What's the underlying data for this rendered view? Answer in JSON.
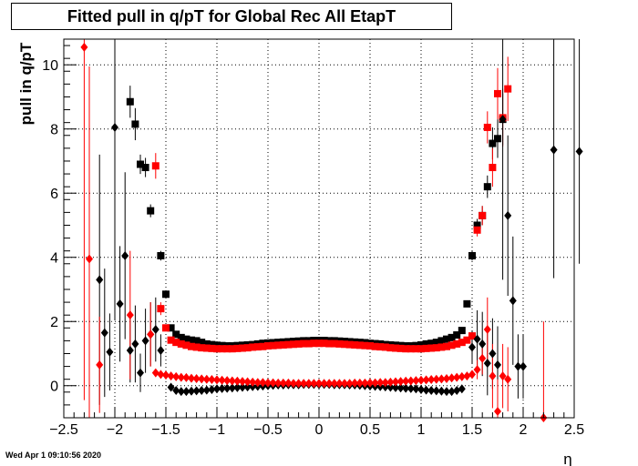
{
  "chart_data": {
    "type": "scatter",
    "title": "Fitted pull in q/pT for Global Rec All EtapT",
    "xlabel": "η",
    "ylabel": "pull in q/pT",
    "xlim": [
      -2.5,
      2.5
    ],
    "ylim": [
      -1.0,
      10.8
    ],
    "xticks": [
      -2.5,
      -2,
      -1.5,
      -1,
      -0.5,
      0,
      0.5,
      1,
      1.5,
      2,
      2.5
    ],
    "xtick_labels": [
      "−2.5",
      "−2",
      "−1.5",
      "−1",
      "−0.5",
      "0",
      "0.5",
      "1",
      "1.5",
      "2",
      "2.5"
    ],
    "yticks": [
      0,
      2,
      4,
      6,
      8,
      10
    ],
    "ytick_labels": [
      "0",
      "2",
      "4",
      "6",
      "8",
      "10"
    ],
    "grid": true,
    "series": [
      {
        "marker": "square",
        "color": "#000000",
        "x": [
          -1.85,
          -1.8,
          -1.75,
          -1.7,
          -1.65,
          -1.55,
          -1.5,
          -1.45,
          -1.4,
          -1.35,
          -1.3,
          -1.25,
          -1.2,
          -1.15,
          -1.1,
          -1.05,
          -1.0,
          -0.95,
          -0.9,
          -0.85,
          -0.8,
          -0.75,
          -0.7,
          -0.65,
          -0.6,
          -0.55,
          -0.5,
          -0.45,
          -0.4,
          -0.35,
          -0.3,
          -0.25,
          -0.2,
          -0.15,
          -0.1,
          -0.05,
          0.0,
          0.05,
          0.1,
          0.15,
          0.2,
          0.25,
          0.3,
          0.35,
          0.4,
          0.45,
          0.5,
          0.55,
          0.6,
          0.65,
          0.7,
          0.75,
          0.8,
          0.85,
          0.9,
          0.95,
          1.0,
          1.05,
          1.1,
          1.15,
          1.2,
          1.25,
          1.3,
          1.35,
          1.4,
          1.45,
          1.5,
          1.55,
          1.6,
          1.65,
          1.7,
          1.75,
          1.8
        ],
        "y": [
          8.85,
          8.15,
          6.9,
          6.8,
          5.45,
          4.05,
          2.85,
          1.8,
          1.6,
          1.5,
          1.45,
          1.42,
          1.4,
          1.35,
          1.3,
          1.28,
          1.26,
          1.25,
          1.24,
          1.24,
          1.25,
          1.26,
          1.27,
          1.28,
          1.3,
          1.32,
          1.33,
          1.34,
          1.35,
          1.36,
          1.37,
          1.38,
          1.39,
          1.4,
          1.4,
          1.41,
          1.41,
          1.41,
          1.4,
          1.4,
          1.39,
          1.38,
          1.37,
          1.36,
          1.35,
          1.34,
          1.32,
          1.31,
          1.3,
          1.28,
          1.27,
          1.26,
          1.25,
          1.24,
          1.24,
          1.25,
          1.27,
          1.3,
          1.32,
          1.35,
          1.4,
          1.45,
          1.5,
          1.58,
          1.72,
          2.55,
          4.05,
          5.0,
          5.3,
          6.2,
          7.55,
          7.7,
          8.3
        ],
        "yerr": [
          0.5,
          0.5,
          0.3,
          0.3,
          0.2,
          0.15,
          0.1,
          0.05,
          0.05,
          0.03,
          0.03,
          0.03,
          0.03,
          0.03,
          0.03,
          0.03,
          0.03,
          0.03,
          0.03,
          0.03,
          0.03,
          0.03,
          0.03,
          0.03,
          0.03,
          0.03,
          0.03,
          0.03,
          0.03,
          0.03,
          0.03,
          0.03,
          0.03,
          0.03,
          0.03,
          0.03,
          0.03,
          0.03,
          0.03,
          0.03,
          0.03,
          0.03,
          0.03,
          0.03,
          0.03,
          0.03,
          0.03,
          0.03,
          0.03,
          0.03,
          0.03,
          0.03,
          0.03,
          0.03,
          0.03,
          0.03,
          0.03,
          0.03,
          0.03,
          0.03,
          0.03,
          0.03,
          0.03,
          0.03,
          0.05,
          0.1,
          0.15,
          0.2,
          0.3,
          0.35,
          0.5,
          0.6,
          0.8
        ]
      },
      {
        "marker": "square",
        "color": "#ff0000",
        "x": [
          -1.6,
          -1.55,
          -1.5,
          -1.45,
          -1.4,
          -1.35,
          -1.3,
          -1.25,
          -1.2,
          -1.15,
          -1.1,
          -1.05,
          -1.0,
          -0.95,
          -0.9,
          -0.85,
          -0.8,
          -0.75,
          -0.7,
          -0.65,
          -0.6,
          -0.55,
          -0.5,
          -0.45,
          -0.4,
          -0.35,
          -0.3,
          -0.25,
          -0.2,
          -0.15,
          -0.1,
          -0.05,
          0.0,
          0.05,
          0.1,
          0.15,
          0.2,
          0.25,
          0.3,
          0.35,
          0.4,
          0.45,
          0.5,
          0.55,
          0.6,
          0.65,
          0.7,
          0.75,
          0.8,
          0.85,
          0.9,
          0.95,
          1.0,
          1.05,
          1.1,
          1.15,
          1.2,
          1.25,
          1.3,
          1.35,
          1.4,
          1.45,
          1.5,
          1.55,
          1.6,
          1.65,
          1.7,
          1.75,
          1.8,
          1.85
        ],
        "y": [
          6.85,
          2.4,
          1.8,
          1.42,
          1.35,
          1.3,
          1.26,
          1.22,
          1.2,
          1.18,
          1.17,
          1.16,
          1.15,
          1.15,
          1.15,
          1.15,
          1.16,
          1.17,
          1.18,
          1.2,
          1.21,
          1.22,
          1.24,
          1.25,
          1.26,
          1.27,
          1.28,
          1.29,
          1.3,
          1.31,
          1.31,
          1.32,
          1.32,
          1.32,
          1.31,
          1.31,
          1.3,
          1.29,
          1.28,
          1.27,
          1.26,
          1.25,
          1.24,
          1.22,
          1.21,
          1.2,
          1.18,
          1.17,
          1.16,
          1.15,
          1.15,
          1.15,
          1.15,
          1.16,
          1.17,
          1.18,
          1.2,
          1.22,
          1.26,
          1.3,
          1.35,
          1.42,
          1.55,
          4.85,
          5.3,
          8.05,
          6.8,
          9.1,
          8.35,
          9.25
        ],
        "yerr": [
          0.4,
          0.2,
          0.1,
          0.05,
          0.03,
          0.03,
          0.03,
          0.03,
          0.03,
          0.03,
          0.03,
          0.03,
          0.03,
          0.03,
          0.03,
          0.03,
          0.03,
          0.03,
          0.03,
          0.03,
          0.03,
          0.03,
          0.03,
          0.03,
          0.03,
          0.03,
          0.03,
          0.03,
          0.03,
          0.03,
          0.03,
          0.03,
          0.03,
          0.03,
          0.03,
          0.03,
          0.03,
          0.03,
          0.03,
          0.03,
          0.03,
          0.03,
          0.03,
          0.03,
          0.03,
          0.03,
          0.03,
          0.03,
          0.03,
          0.03,
          0.03,
          0.03,
          0.03,
          0.03,
          0.03,
          0.03,
          0.03,
          0.03,
          0.03,
          0.03,
          0.03,
          0.05,
          0.1,
          0.2,
          0.3,
          0.5,
          0.6,
          0.8,
          0.9,
          1.0
        ]
      },
      {
        "marker": "diamond",
        "color": "#000000",
        "x": [
          -2.15,
          -2.1,
          -2.05,
          -2.0,
          -1.95,
          -1.9,
          -1.85,
          -1.8,
          -1.75,
          -1.7,
          -1.65,
          -1.6,
          -1.55,
          -1.45,
          -1.4,
          -1.35,
          -1.3,
          -1.25,
          -1.2,
          -1.15,
          -1.1,
          -1.05,
          -1.0,
          -0.95,
          -0.9,
          -0.85,
          -0.8,
          -0.75,
          -0.7,
          -0.65,
          -0.6,
          -0.55,
          -0.5,
          -0.45,
          -0.4,
          -0.35,
          -0.3,
          -0.25,
          -0.2,
          -0.15,
          -0.1,
          -0.05,
          0.0,
          0.05,
          0.1,
          0.15,
          0.2,
          0.25,
          0.3,
          0.35,
          0.4,
          0.45,
          0.5,
          0.55,
          0.6,
          0.65,
          0.7,
          0.75,
          0.8,
          0.85,
          0.9,
          0.95,
          1.0,
          1.05,
          1.1,
          1.15,
          1.2,
          1.25,
          1.3,
          1.35,
          1.4,
          1.5,
          1.55,
          1.6,
          1.65,
          1.7,
          1.75,
          1.8,
          1.85,
          1.9,
          1.95,
          2.0,
          2.3,
          2.55
        ],
        "y": [
          3.3,
          1.65,
          1.05,
          8.05,
          2.55,
          4.05,
          1.1,
          1.3,
          0.4,
          1.4,
          1.6,
          1.75,
          1.1,
          -0.05,
          -0.15,
          -0.18,
          -0.18,
          -0.17,
          -0.16,
          -0.15,
          -0.14,
          -0.12,
          -0.1,
          -0.09,
          -0.08,
          -0.07,
          -0.06,
          -0.05,
          -0.04,
          -0.03,
          -0.02,
          -0.01,
          0.0,
          0.01,
          0.02,
          0.02,
          0.03,
          0.03,
          0.03,
          0.04,
          0.04,
          0.04,
          0.04,
          0.04,
          0.04,
          0.03,
          0.03,
          0.03,
          0.02,
          0.02,
          0.01,
          0.0,
          -0.01,
          -0.02,
          -0.03,
          -0.04,
          -0.05,
          -0.06,
          -0.07,
          -0.08,
          -0.09,
          -0.1,
          -0.12,
          -0.14,
          -0.15,
          -0.16,
          -0.17,
          -0.18,
          -0.18,
          -0.15,
          -0.1,
          1.2,
          1.45,
          1.3,
          0.7,
          1.0,
          0.65,
          8.3,
          5.3,
          2.65,
          0.6,
          0.6,
          7.35,
          7.3
        ],
        "yerr": [
          3.9,
          2.0,
          1.2,
          6.0,
          1.8,
          2.6,
          1.0,
          1.2,
          0.6,
          1.0,
          1.0,
          1.0,
          0.5,
          0.05,
          0.03,
          0.03,
          0.03,
          0.03,
          0.03,
          0.03,
          0.03,
          0.03,
          0.03,
          0.03,
          0.03,
          0.03,
          0.03,
          0.03,
          0.03,
          0.03,
          0.03,
          0.03,
          0.03,
          0.03,
          0.03,
          0.03,
          0.03,
          0.03,
          0.03,
          0.03,
          0.03,
          0.03,
          0.03,
          0.03,
          0.03,
          0.03,
          0.03,
          0.03,
          0.03,
          0.03,
          0.03,
          0.03,
          0.03,
          0.03,
          0.03,
          0.03,
          0.03,
          0.03,
          0.03,
          0.03,
          0.03,
          0.03,
          0.03,
          0.03,
          0.03,
          0.03,
          0.03,
          0.03,
          0.03,
          0.03,
          0.05,
          0.5,
          0.9,
          1.0,
          1.0,
          1.1,
          1.2,
          5.0,
          2.5,
          2.0,
          1.0,
          1.0,
          4.0,
          3.5
        ]
      },
      {
        "marker": "diamond",
        "color": "#ff0000",
        "x": [
          -2.3,
          -2.25,
          -2.15,
          -1.85,
          -1.65,
          -1.6,
          -1.55,
          -1.5,
          -1.45,
          -1.4,
          -1.35,
          -1.3,
          -1.25,
          -1.2,
          -1.15,
          -1.1,
          -1.05,
          -1.0,
          -0.95,
          -0.9,
          -0.85,
          -0.8,
          -0.75,
          -0.7,
          -0.65,
          -0.6,
          -0.55,
          -0.5,
          -0.45,
          -0.4,
          -0.35,
          -0.3,
          -0.25,
          -0.2,
          -0.15,
          -0.1,
          -0.05,
          0.0,
          0.05,
          0.1,
          0.15,
          0.2,
          0.25,
          0.3,
          0.35,
          0.4,
          0.45,
          0.5,
          0.55,
          0.6,
          0.65,
          0.7,
          0.75,
          0.8,
          0.85,
          0.9,
          0.95,
          1.0,
          1.05,
          1.1,
          1.15,
          1.2,
          1.25,
          1.3,
          1.35,
          1.4,
          1.45,
          1.5,
          1.55,
          1.6,
          1.65,
          1.7,
          1.75,
          1.8,
          1.85,
          2.2
        ],
        "y": [
          10.55,
          3.95,
          0.65,
          2.2,
          1.6,
          0.4,
          0.35,
          0.33,
          0.3,
          0.28,
          0.26,
          0.25,
          0.23,
          0.22,
          0.21,
          0.2,
          0.19,
          0.18,
          0.17,
          0.16,
          0.15,
          0.14,
          0.13,
          0.12,
          0.11,
          0.1,
          0.1,
          0.09,
          0.09,
          0.08,
          0.08,
          0.08,
          0.07,
          0.07,
          0.07,
          0.07,
          0.07,
          0.07,
          0.07,
          0.07,
          0.07,
          0.07,
          0.07,
          0.07,
          0.08,
          0.08,
          0.08,
          0.09,
          0.09,
          0.1,
          0.1,
          0.11,
          0.12,
          0.13,
          0.14,
          0.15,
          0.16,
          0.17,
          0.18,
          0.19,
          0.2,
          0.21,
          0.22,
          0.24,
          0.26,
          0.28,
          0.3,
          0.35,
          0.5,
          0.85,
          1.75,
          0.3,
          -0.8,
          0.3,
          0.2,
          -1.0
        ],
        "yerr": [
          11.0,
          6.0,
          1.5,
          2.0,
          1.0,
          0.1,
          0.05,
          0.04,
          0.03,
          0.03,
          0.03,
          0.03,
          0.03,
          0.03,
          0.03,
          0.03,
          0.03,
          0.03,
          0.03,
          0.03,
          0.03,
          0.03,
          0.03,
          0.03,
          0.03,
          0.03,
          0.03,
          0.03,
          0.03,
          0.03,
          0.03,
          0.03,
          0.03,
          0.03,
          0.03,
          0.03,
          0.03,
          0.03,
          0.03,
          0.03,
          0.03,
          0.03,
          0.03,
          0.03,
          0.03,
          0.03,
          0.03,
          0.03,
          0.03,
          0.03,
          0.03,
          0.03,
          0.03,
          0.03,
          0.03,
          0.03,
          0.03,
          0.03,
          0.03,
          0.03,
          0.03,
          0.03,
          0.03,
          0.03,
          0.03,
          0.03,
          0.03,
          0.1,
          0.3,
          0.5,
          1.0,
          1.0,
          1.0,
          1.0,
          1.0,
          3.0
        ]
      }
    ]
  },
  "footer": {
    "timestamp": "Wed Apr  1 09:10:56 2020"
  }
}
